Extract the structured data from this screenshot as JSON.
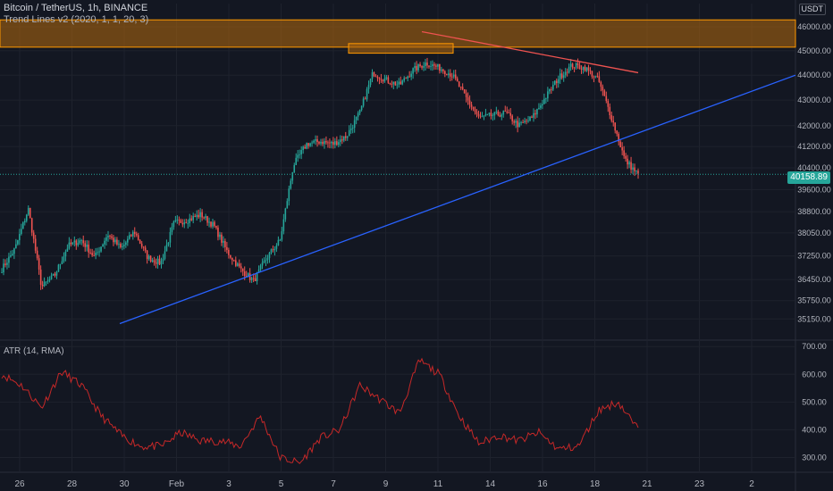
{
  "header": {
    "symbol_line": "Bitcoin / TetherUS, 1h, BINANCE",
    "indicator_line": "Trend Lines v2 (2020, 1, 1, 20, 3)",
    "currency": "USDT",
    "last_price": "40158.89"
  },
  "atr_pane": {
    "label": "ATR (14, RMA)"
  },
  "colors": {
    "background": "#131722",
    "up": "#26a69a",
    "down": "#ef5350",
    "trend_up": "#2962ff",
    "trend_down": "#ef5350",
    "zone_fill": "#a6630f",
    "zone_border": "#ff9800",
    "atr_line": "#c62828",
    "axis_text": "#b2b5be"
  },
  "chart_data": [
    {
      "type": "candlestick",
      "title": "Bitcoin / TetherUS, 1h, BINANCE",
      "x_ticks": [
        "26",
        "28",
        "30",
        "Feb",
        "3",
        "5",
        "7",
        "9",
        "11",
        "14",
        "16",
        "18",
        "21",
        "23",
        "2"
      ],
      "y_ticks": [
        46000,
        45000,
        44000,
        43000,
        42000,
        41200,
        40400,
        39600,
        38800,
        38050,
        37250,
        36450,
        35750,
        35150
      ],
      "y_tick_labels": [
        "46000.00",
        "45000.00",
        "44000.00",
        "43000.00",
        "42000.00",
        "41200.00",
        "40400.00",
        "39600.00",
        "38800.00",
        "38050.00",
        "37250.00",
        "36450.00",
        "35750.00",
        "35150.00"
      ],
      "y_scale": "log",
      "ylim": [
        34500,
        47000
      ],
      "price_path": [
        [
          "26",
          36800
        ],
        [
          "26",
          37500
        ],
        [
          "26",
          38900
        ],
        [
          "26",
          36200
        ],
        [
          "28",
          36600
        ],
        [
          "28",
          37600
        ],
        [
          "28",
          37800
        ],
        [
          "28",
          37200
        ],
        [
          "30",
          38000
        ],
        [
          "30",
          37500
        ],
        [
          "30",
          38100
        ],
        [
          "30",
          37200
        ],
        [
          "30",
          37000
        ],
        [
          "Feb",
          38400
        ],
        [
          "Feb",
          38500
        ],
        [
          "Feb",
          38700
        ],
        [
          "Feb",
          38300
        ],
        [
          "Feb",
          37400
        ],
        [
          "3",
          36800
        ],
        [
          "3",
          36400
        ],
        [
          "3",
          37200
        ],
        [
          "3",
          37800
        ],
        [
          "5",
          40500
        ],
        [
          "5",
          41300
        ],
        [
          "5",
          41400
        ],
        [
          "5",
          41300
        ],
        [
          "7",
          41600
        ],
        [
          "7",
          42500
        ],
        [
          "7",
          44100
        ],
        [
          "7",
          43800
        ],
        [
          "9",
          43600
        ],
        [
          "9",
          44200
        ],
        [
          "9",
          44500
        ],
        [
          "9",
          44300
        ],
        [
          "11",
          44000
        ],
        [
          "11",
          43100
        ],
        [
          "11",
          42300
        ],
        [
          "11",
          42400
        ],
        [
          "14",
          42500
        ],
        [
          "14",
          42000
        ],
        [
          "14",
          42300
        ],
        [
          "14",
          43100
        ],
        [
          "16",
          43900
        ],
        [
          "16",
          44400
        ],
        [
          "16",
          44300
        ],
        [
          "16",
          43800
        ],
        [
          "18",
          42300
        ],
        [
          "18",
          40700
        ],
        [
          "18",
          40150
        ]
      ],
      "last_price": 40158.89,
      "resistance_zone": [
        45150,
        46300
      ],
      "consolidation_box": [
        44900,
        45300
      ],
      "annotations": "Resistance zone (orange band), descending trend line (red), ascending trend line (blue)"
    },
    {
      "type": "line",
      "title": "ATR (14, RMA)",
      "y_ticks": [
        700,
        600,
        500,
        400,
        300
      ],
      "y_tick_labels": [
        "700.00",
        "600.00",
        "500.00",
        "400.00",
        "300.00"
      ],
      "ylim": [
        250,
        720
      ],
      "x_ticks": [
        "26",
        "28",
        "30",
        "Feb",
        "3",
        "5",
        "7",
        "9",
        "11",
        "14",
        "16",
        "18",
        "21",
        "23",
        "2"
      ],
      "x": [
        "26",
        "26",
        "26",
        "28",
        "28",
        "28",
        "30",
        "30",
        "30",
        "Feb",
        "Feb",
        "3",
        "3",
        "3",
        "5",
        "5",
        "7",
        "7",
        "9",
        "9",
        "9",
        "11",
        "11",
        "11",
        "14",
        "14",
        "14",
        "16",
        "16",
        "16",
        "18",
        "18",
        "18"
      ],
      "values": [
        600,
        560,
        480,
        610,
        560,
        450,
        380,
        340,
        340,
        390,
        360,
        360,
        340,
        450,
        300,
        280,
        370,
        400,
        560,
        510,
        460,
        650,
        600,
        450,
        350,
        380,
        360,
        390,
        330,
        340,
        470,
        500,
        400
      ]
    }
  ]
}
